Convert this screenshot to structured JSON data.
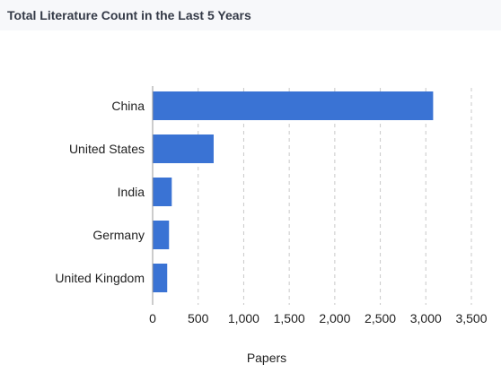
{
  "header": {
    "title": "Total Literature Count in the Last 5 Years"
  },
  "colors": {
    "bar": "#3a73d4",
    "grid": "#c8c8c8",
    "axis": "#999999",
    "title": "#343a47",
    "header_bg": "#f7f8fa"
  },
  "chart_data": {
    "type": "bar",
    "orientation": "horizontal",
    "categories": [
      "China",
      "United States",
      "India",
      "Germany",
      "United Kingdom"
    ],
    "values": [
      3080,
      670,
      210,
      180,
      160
    ],
    "title": "",
    "xlabel": "Papers",
    "ylabel": "",
    "xlim": [
      0,
      3500
    ],
    "xticks": [
      0,
      500,
      1000,
      1500,
      2000,
      2500,
      3000,
      3500
    ],
    "xtick_labels": [
      "0",
      "500",
      "1,000",
      "1,500",
      "2,000",
      "2,500",
      "3,000",
      "3,500"
    ],
    "grid": "vertical dashed",
    "legend": "none"
  }
}
